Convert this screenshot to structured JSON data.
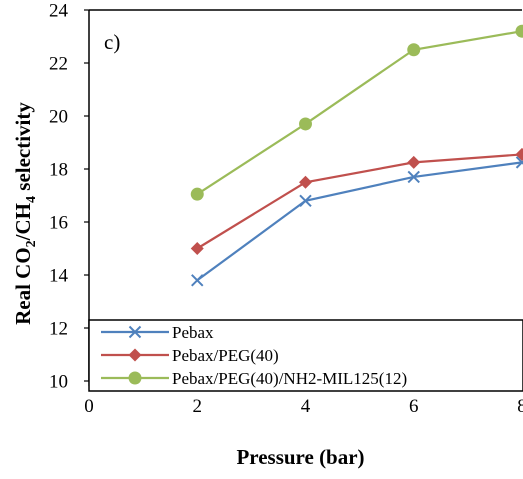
{
  "chart_data": {
    "type": "line",
    "panel_label": "c)",
    "xlabel": "Pressure (bar)",
    "ylabel": {
      "parts": [
        {
          "t": "Real CO",
          "sub": false
        },
        {
          "t": "2",
          "sub": true
        },
        {
          "t": "/CH",
          "sub": false
        },
        {
          "t": "4",
          "sub": true
        },
        {
          "t": " selectivity",
          "sub": false
        }
      ]
    },
    "xlim": [
      0,
      8
    ],
    "ylim": [
      10,
      24
    ],
    "xticks": [
      "0",
      "2",
      "4",
      "6",
      "8"
    ],
    "yticks": [
      "10",
      "12",
      "14",
      "16",
      "18",
      "20",
      "22",
      "24"
    ],
    "x": [
      2,
      4,
      6,
      8
    ],
    "series": [
      {
        "name": "Pebax",
        "color": "#4F81BD",
        "marker": "x",
        "values": [
          13.8,
          16.8,
          17.7,
          18.25
        ]
      },
      {
        "name": "Pebax/PEG(40)",
        "color": "#C0504D",
        "marker": "diamond",
        "values": [
          15.0,
          17.5,
          18.25,
          18.55
        ]
      },
      {
        "name": "Pebax/PEG(40)/NH2-MIL125(12)",
        "color": "#9BBB59",
        "marker": "circle",
        "values": [
          17.05,
          19.7,
          22.5,
          23.2
        ]
      }
    ],
    "legend_position": "bottom-left"
  }
}
